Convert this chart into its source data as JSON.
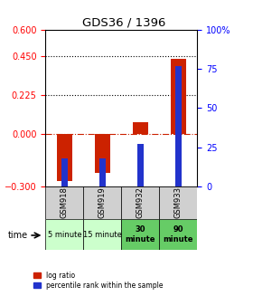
{
  "title": "GDS36 / 1396",
  "samples": [
    "GSM918",
    "GSM919",
    "GSM932",
    "GSM933"
  ],
  "time_labels": [
    "5 minute",
    "15 minute",
    "30\nminute",
    "90\nminute"
  ],
  "time_colors": [
    "#ccffcc",
    "#ccffcc",
    "#66cc66",
    "#66cc66"
  ],
  "log_ratios": [
    -0.27,
    -0.22,
    0.07,
    0.43
  ],
  "percentile_ranks": [
    18,
    18,
    27,
    77
  ],
  "bar_color_red": "#cc2200",
  "bar_color_blue": "#2233cc",
  "ylim_left": [
    -0.3,
    0.6
  ],
  "ylim_right": [
    0,
    100
  ],
  "yticks_left": [
    -0.3,
    0,
    0.225,
    0.45,
    0.6
  ],
  "yticks_right": [
    0,
    25,
    50,
    75,
    100
  ],
  "hlines_dotted": [
    0.225,
    0.45
  ],
  "hline_dash": 0,
  "bar_width": 0.4,
  "blue_bar_width": 0.15,
  "background_color": "#ffffff",
  "legend_red": "log ratio",
  "legend_blue": "percentile rank within the sample",
  "time_label": "time",
  "gsm_bg": "#d0d0d0"
}
